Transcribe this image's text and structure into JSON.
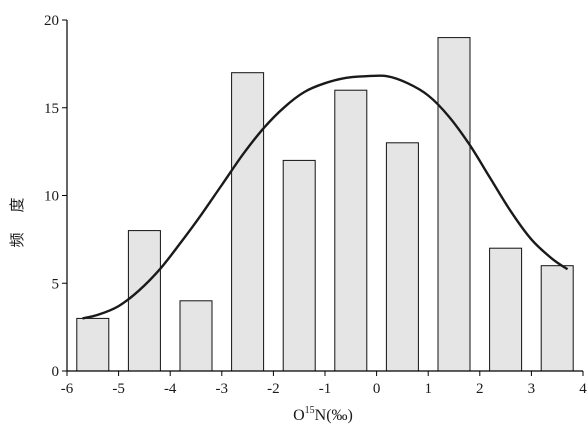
{
  "chart_data": {
    "type": "bar",
    "title": "",
    "xlabel": {
      "main": "O",
      "sup": "15",
      "rest": "N(‰)"
    },
    "ylabel": [
      "频",
      "度"
    ],
    "xlim": [
      -6,
      4
    ],
    "ylim": [
      0,
      20
    ],
    "xticks": [
      "-6",
      "-5",
      "-4",
      "-3",
      "-2",
      "-1",
      "0",
      "1",
      "2",
      "3",
      "4"
    ],
    "yticks": [
      "0",
      "5",
      "10",
      "15",
      "20"
    ],
    "grid": false,
    "bars": [
      {
        "x": -5.5,
        "value": 3
      },
      {
        "x": -4.5,
        "value": 8
      },
      {
        "x": -3.5,
        "value": 4
      },
      {
        "x": -2.5,
        "value": 17
      },
      {
        "x": -1.5,
        "value": 12
      },
      {
        "x": -0.5,
        "value": 16
      },
      {
        "x": 0.5,
        "value": 13
      },
      {
        "x": 1.5,
        "value": 19
      },
      {
        "x": 2.5,
        "value": 7
      },
      {
        "x": 3.5,
        "value": 6
      }
    ],
    "bar_width": 0.62,
    "bar_fill": "#e5e5e5",
    "bar_stroke": "#111111",
    "fit_curve": {
      "kind": "normal",
      "points": [
        [
          -5.7,
          3.0
        ],
        [
          -5.4,
          3.2
        ],
        [
          -5.0,
          3.7
        ],
        [
          -4.6,
          4.6
        ],
        [
          -4.2,
          5.8
        ],
        [
          -3.8,
          7.3
        ],
        [
          -3.4,
          8.9
        ],
        [
          -3.0,
          10.6
        ],
        [
          -2.6,
          12.3
        ],
        [
          -2.2,
          13.8
        ],
        [
          -1.8,
          15.0
        ],
        [
          -1.4,
          15.9
        ],
        [
          -1.0,
          16.4
        ],
        [
          -0.6,
          16.7
        ],
        [
          -0.2,
          16.8
        ],
        [
          0.2,
          16.8
        ],
        [
          0.6,
          16.4
        ],
        [
          1.0,
          15.7
        ],
        [
          1.4,
          14.5
        ],
        [
          1.8,
          12.9
        ],
        [
          2.2,
          11.0
        ],
        [
          2.6,
          9.1
        ],
        [
          3.0,
          7.5
        ],
        [
          3.4,
          6.4
        ],
        [
          3.7,
          5.8
        ]
      ],
      "stroke": "#1a1a1a"
    }
  }
}
